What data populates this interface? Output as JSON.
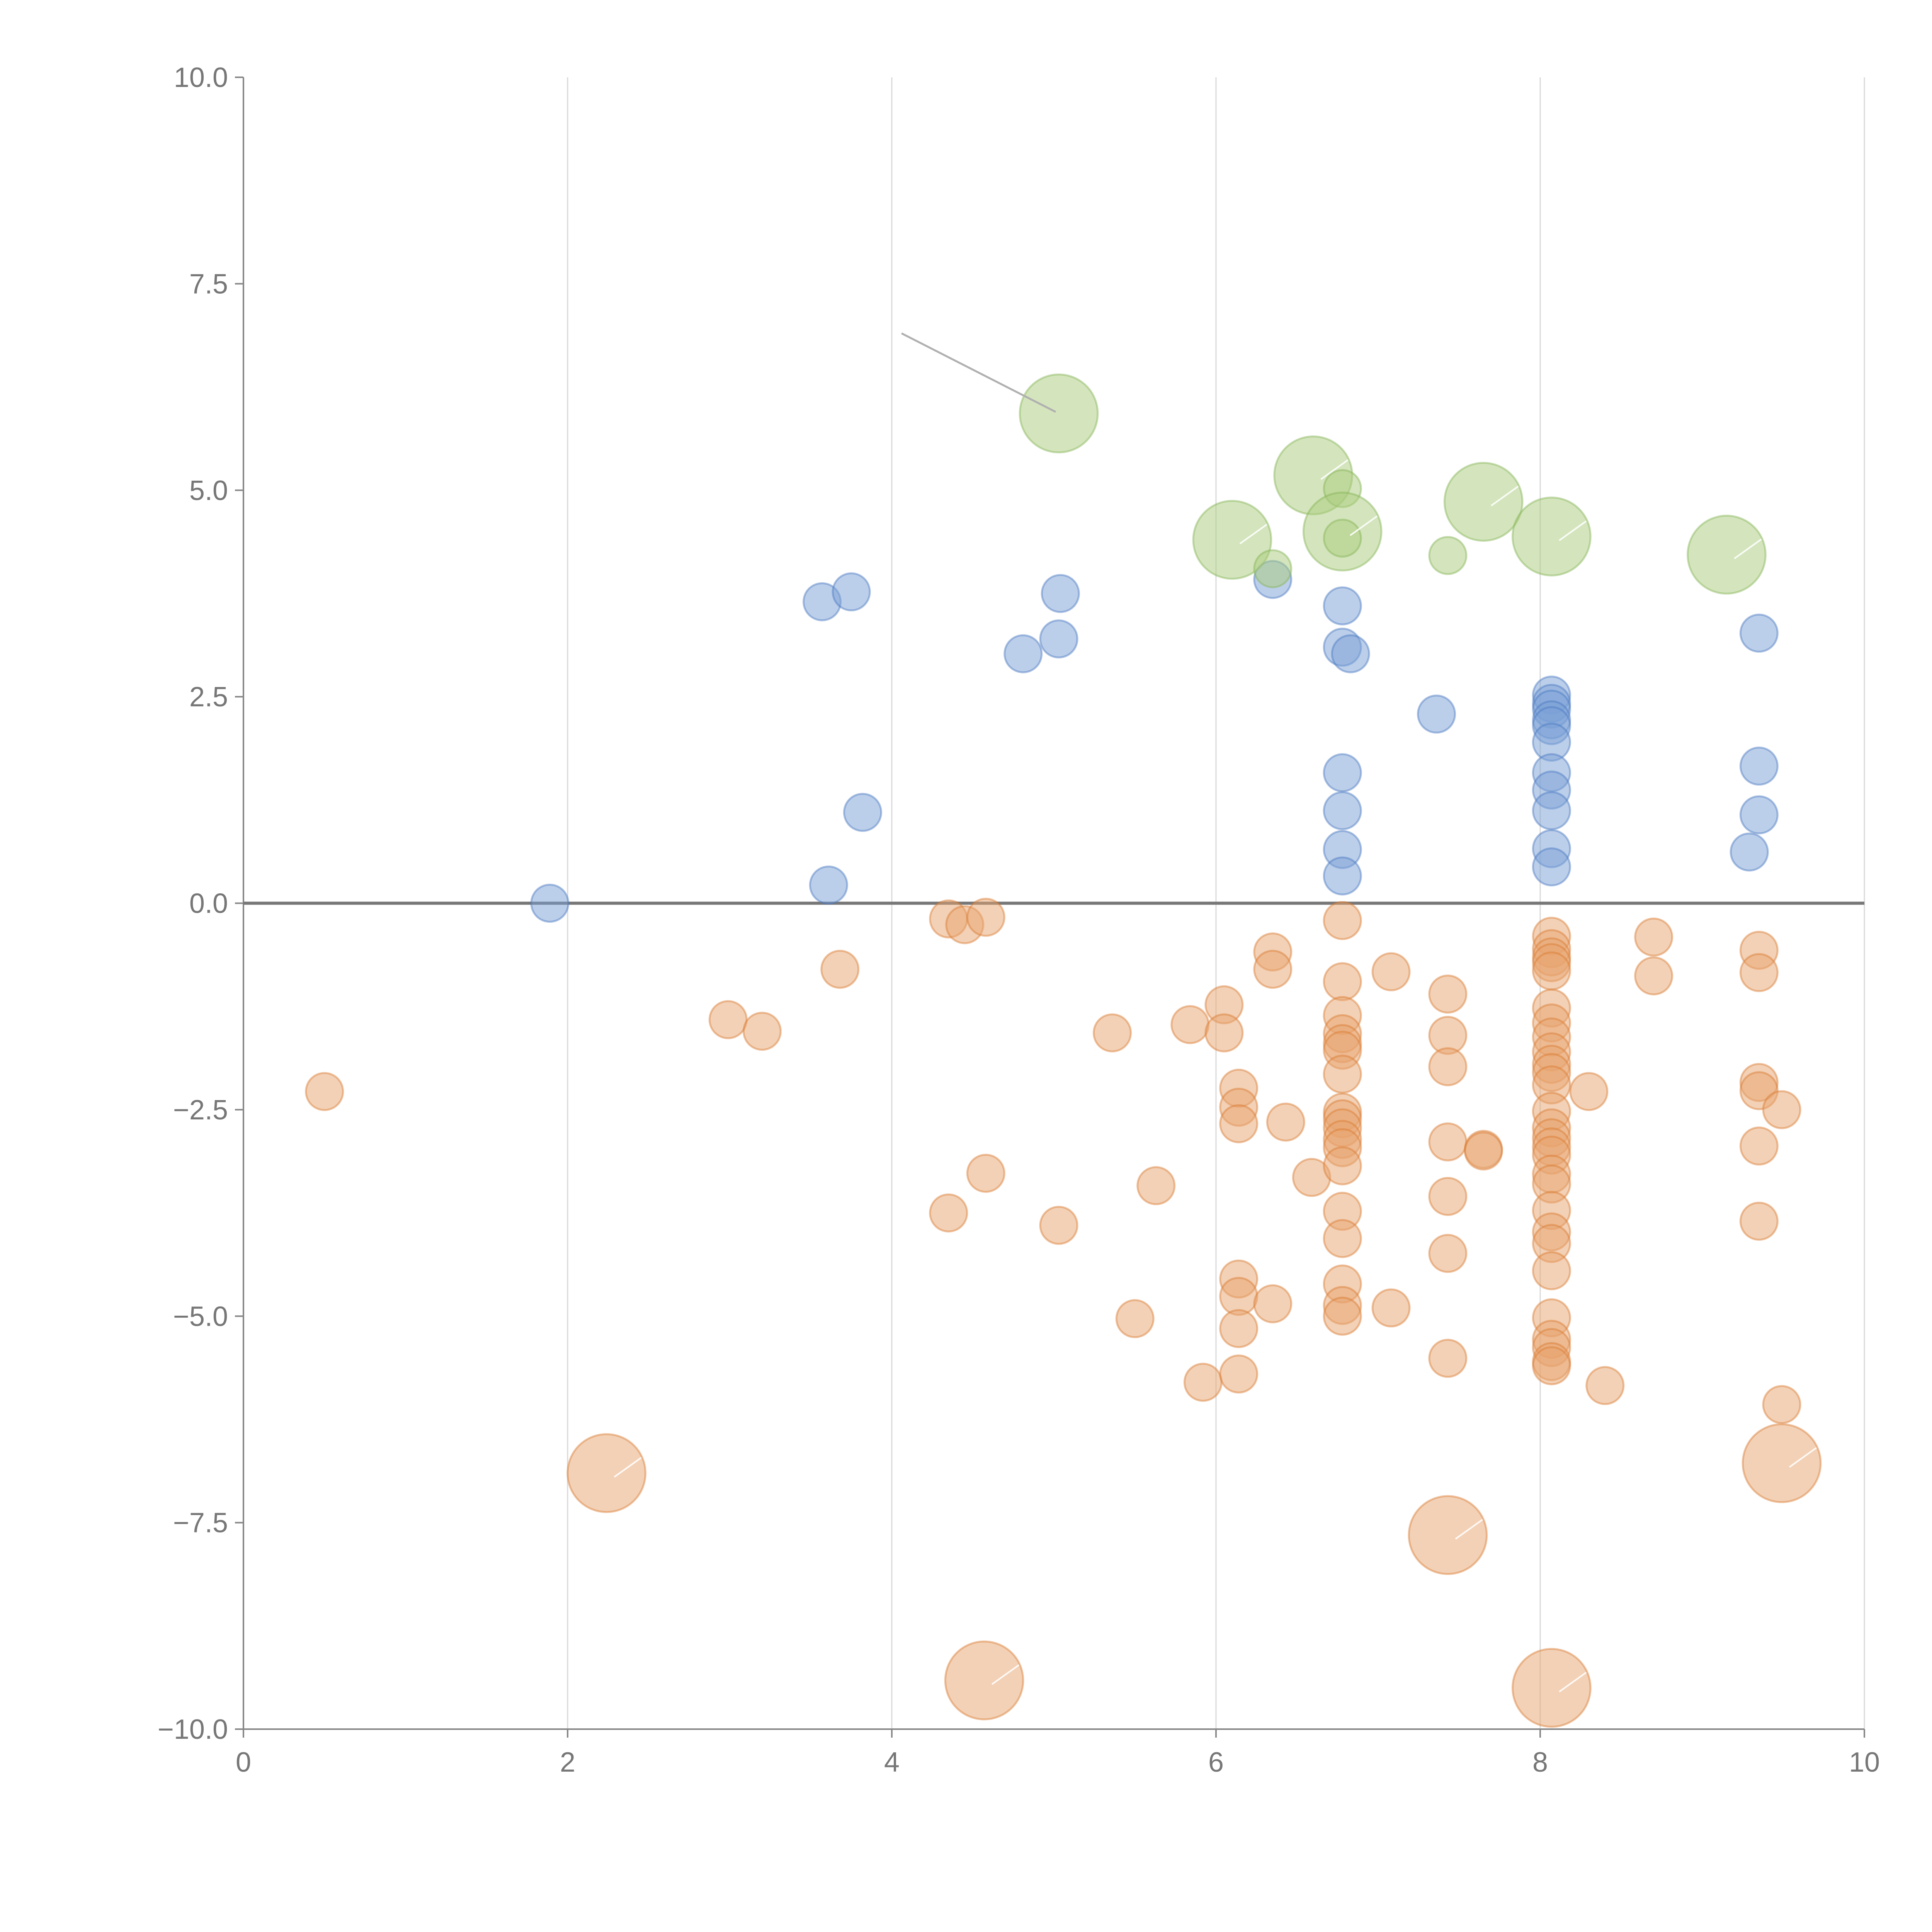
{
  "chart_data": {
    "type": "scatter",
    "title": "",
    "xlabel": "",
    "ylabel": "",
    "xlim": [
      0,
      10
    ],
    "ylim": [
      -10,
      10
    ],
    "x_ticks": [
      0,
      2,
      4,
      6,
      8,
      10
    ],
    "y_ticks": [
      -10.0,
      -7.5,
      -5.0,
      -2.5,
      0.0,
      2.5,
      5.0,
      7.5,
      10.0
    ],
    "x_tick_labels": [
      "0",
      "2",
      "4",
      "6",
      "8",
      "10"
    ],
    "y_tick_labels": [
      "−10.0",
      "−7.5",
      "−5.0",
      "−2.5",
      "0.0",
      "2.5",
      "5.0",
      "7.5",
      "10.0"
    ],
    "grid": "vertical",
    "baseline_y": 0,
    "colors": {
      "blue": "#7a9fd6",
      "orange": "#e8a36e",
      "green": "#a9cc7c",
      "blueStroke": "#4a78c0",
      "orangeStroke": "#d97a30",
      "greenStroke": "#86b356"
    },
    "series": [
      {
        "color": "blue",
        "points": [
          [
            1.89,
            0.0,
            1
          ],
          [
            3.57,
            3.65,
            1
          ],
          [
            3.75,
            3.77,
            1
          ],
          [
            3.61,
            0.22,
            1
          ],
          [
            3.82,
            1.1,
            1
          ],
          [
            4.81,
            3.02,
            1
          ],
          [
            5.03,
            3.2,
            1
          ],
          [
            5.04,
            3.75,
            1
          ],
          [
            6.35,
            3.92,
            1
          ],
          [
            6.78,
            3.6,
            1
          ],
          [
            6.78,
            3.1,
            1
          ],
          [
            6.83,
            3.02,
            1
          ],
          [
            6.78,
            1.58,
            1
          ],
          [
            6.78,
            1.12,
            1
          ],
          [
            6.78,
            0.65,
            1
          ],
          [
            6.78,
            0.33,
            1
          ],
          [
            7.36,
            2.29,
            1
          ],
          [
            8.07,
            2.52,
            1
          ],
          [
            8.07,
            2.42,
            1
          ],
          [
            8.07,
            2.35,
            1
          ],
          [
            8.07,
            2.22,
            1
          ],
          [
            8.07,
            2.15,
            1
          ],
          [
            8.07,
            1.95,
            1
          ],
          [
            8.07,
            1.58,
            1
          ],
          [
            8.07,
            1.37,
            1
          ],
          [
            8.07,
            1.12,
            1
          ],
          [
            8.07,
            0.66,
            1
          ],
          [
            8.07,
            0.44,
            1
          ],
          [
            9.35,
            3.27,
            1
          ],
          [
            9.35,
            1.66,
            1
          ],
          [
            9.35,
            1.07,
            1
          ],
          [
            9.29,
            0.62,
            1
          ]
        ]
      },
      {
        "color": "green",
        "points": [
          [
            5.03,
            5.93,
            2.1
          ],
          [
            6.1,
            4.4,
            2.1
          ],
          [
            6.35,
            4.05,
            1
          ],
          [
            6.6,
            5.18,
            2.1
          ],
          [
            6.78,
            5.02,
            1
          ],
          [
            6.78,
            4.5,
            2.1
          ],
          [
            6.78,
            4.42,
            1
          ],
          [
            7.43,
            4.21,
            1
          ],
          [
            7.65,
            4.86,
            2.1
          ],
          [
            8.07,
            4.44,
            2.1
          ],
          [
            9.15,
            4.22,
            2.1
          ]
        ]
      },
      {
        "color": "orange",
        "points": [
          [
            0.5,
            -2.28,
            1
          ],
          [
            2.99,
            -1.41,
            1
          ],
          [
            3.2,
            -1.55,
            1
          ],
          [
            3.68,
            -0.8,
            1
          ],
          [
            4.35,
            -0.19,
            1
          ],
          [
            4.45,
            -0.26,
            1
          ],
          [
            4.58,
            -0.17,
            1
          ],
          [
            4.35,
            -3.75,
            1
          ],
          [
            4.58,
            -3.27,
            1
          ],
          [
            5.03,
            -3.9,
            1
          ],
          [
            5.36,
            -1.57,
            1
          ],
          [
            5.5,
            -5.03,
            1
          ],
          [
            5.63,
            -3.42,
            1
          ],
          [
            5.84,
            -1.47,
            1
          ],
          [
            5.92,
            -5.8,
            1
          ],
          [
            6.05,
            -1.23,
            1
          ],
          [
            6.05,
            -1.57,
            1
          ],
          [
            6.14,
            -2.24,
            1
          ],
          [
            6.14,
            -2.47,
            1
          ],
          [
            6.14,
            -2.67,
            1
          ],
          [
            6.14,
            -4.55,
            1
          ],
          [
            6.14,
            -4.76,
            1
          ],
          [
            6.14,
            -5.15,
            1
          ],
          [
            6.14,
            -5.7,
            1
          ],
          [
            6.35,
            -0.59,
            1
          ],
          [
            6.35,
            -0.8,
            1
          ],
          [
            6.43,
            -2.65,
            1
          ],
          [
            6.35,
            -4.85,
            1
          ],
          [
            6.59,
            -3.32,
            1
          ],
          [
            6.78,
            -0.21,
            1
          ],
          [
            6.78,
            -0.95,
            1
          ],
          [
            6.78,
            -1.36,
            1
          ],
          [
            6.78,
            -1.58,
            1
          ],
          [
            6.78,
            -1.7,
            1
          ],
          [
            6.78,
            -1.78,
            1
          ],
          [
            6.78,
            -2.07,
            1
          ],
          [
            6.78,
            -2.53,
            1
          ],
          [
            6.78,
            -2.61,
            1
          ],
          [
            6.78,
            -2.72,
            1
          ],
          [
            6.78,
            -2.86,
            1
          ],
          [
            6.78,
            -2.96,
            1
          ],
          [
            6.78,
            -3.18,
            1
          ],
          [
            6.78,
            -3.73,
            1
          ],
          [
            6.78,
            -4.06,
            1
          ],
          [
            6.78,
            -4.61,
            1
          ],
          [
            6.78,
            -4.87,
            1
          ],
          [
            6.78,
            -5.0,
            1
          ],
          [
            7.08,
            -0.83,
            1
          ],
          [
            7.08,
            -4.9,
            1
          ],
          [
            7.43,
            -1.1,
            1
          ],
          [
            7.43,
            -1.6,
            1
          ],
          [
            7.43,
            -1.98,
            1
          ],
          [
            7.43,
            -2.89,
            1
          ],
          [
            7.43,
            -3.55,
            1
          ],
          [
            7.43,
            -4.24,
            1
          ],
          [
            7.43,
            -5.51,
            1
          ],
          [
            7.43,
            -7.65,
            2.1
          ],
          [
            7.65,
            -2.98,
            1
          ],
          [
            7.65,
            -3.0,
            1
          ],
          [
            8.07,
            -0.4,
            1
          ],
          [
            8.07,
            -0.55,
            1
          ],
          [
            8.07,
            -0.65,
            1
          ],
          [
            8.07,
            -0.72,
            1
          ],
          [
            8.07,
            -0.82,
            1
          ],
          [
            8.07,
            -1.27,
            1
          ],
          [
            8.07,
            -1.45,
            1
          ],
          [
            8.07,
            -1.62,
            1
          ],
          [
            8.07,
            -1.8,
            1
          ],
          [
            8.07,
            -1.95,
            1
          ],
          [
            8.07,
            -2.05,
            1
          ],
          [
            8.07,
            -2.2,
            1
          ],
          [
            8.07,
            -2.52,
            1
          ],
          [
            8.07,
            -2.72,
            1
          ],
          [
            8.07,
            -2.84,
            1
          ],
          [
            8.07,
            -2.95,
            1
          ],
          [
            8.07,
            -3.05,
            1
          ],
          [
            8.07,
            -3.28,
            1
          ],
          [
            8.07,
            -3.4,
            1
          ],
          [
            8.07,
            -3.72,
            1
          ],
          [
            8.07,
            -3.98,
            1
          ],
          [
            8.07,
            -4.12,
            1
          ],
          [
            8.07,
            -4.45,
            1
          ],
          [
            8.07,
            -5.02,
            1
          ],
          [
            8.07,
            -5.28,
            1
          ],
          [
            8.07,
            -5.38,
            1
          ],
          [
            8.07,
            -5.55,
            1
          ],
          [
            8.07,
            -5.6,
            1
          ],
          [
            8.07,
            -9.5,
            2.1
          ],
          [
            8.3,
            -2.28,
            1
          ],
          [
            8.4,
            -5.84,
            1
          ],
          [
            8.7,
            -0.41,
            1
          ],
          [
            8.7,
            -0.88,
            1
          ],
          [
            9.35,
            -0.57,
            1
          ],
          [
            9.35,
            -0.84,
            1
          ],
          [
            9.35,
            -2.17,
            1
          ],
          [
            9.35,
            -2.27,
            1
          ],
          [
            9.35,
            -2.94,
            1
          ],
          [
            9.35,
            -3.85,
            1
          ],
          [
            9.49,
            -2.5,
            1
          ],
          [
            9.49,
            -6.07,
            1
          ],
          [
            9.49,
            -6.78,
            2.1
          ],
          [
            2.24,
            -6.9,
            2.1
          ],
          [
            4.57,
            -9.41,
            2.1
          ]
        ]
      }
    ]
  }
}
